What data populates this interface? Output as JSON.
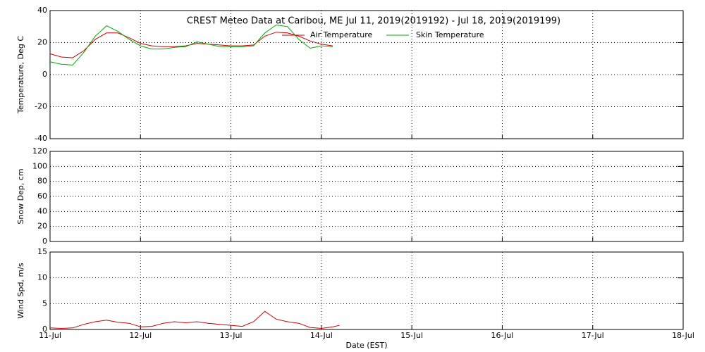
{
  "chart_data": [
    {
      "type": "line",
      "title": "CREST Meteo Data at Caribou, ME   Jul 11, 2019(2019192) - Jul 18, 2019(2019199)",
      "y_label": "Temperature, Deg C",
      "x": [
        0,
        0.125,
        0.25,
        0.375,
        0.5,
        0.625,
        0.75,
        0.875,
        1,
        1.125,
        1.25,
        1.375,
        1.5,
        1.625,
        1.75,
        1.875,
        2,
        2.125,
        2.25,
        2.375,
        2.5,
        2.625,
        2.75,
        2.875,
        3,
        3.125
      ],
      "series": [
        {
          "name": "Air Temperature",
          "color": "#cc0000",
          "values": [
            13,
            11,
            10.5,
            15,
            22,
            26,
            26,
            23,
            19.5,
            18,
            17.5,
            17.5,
            18,
            19.5,
            19,
            18.5,
            18,
            18,
            18.5,
            24,
            26.5,
            26,
            24,
            21,
            19,
            18
          ]
        },
        {
          "name": "Skin Temperature",
          "color": "#00aa00",
          "values": [
            8,
            6.5,
            6,
            14,
            24,
            30.5,
            27,
            22,
            18,
            16,
            16,
            17,
            17.5,
            20.5,
            19,
            17.5,
            17.5,
            17.5,
            18,
            26,
            31,
            30,
            22,
            16.5,
            18,
            17.5
          ]
        }
      ],
      "xlim": [
        0,
        7
      ],
      "xticks": [
        0,
        1,
        2,
        3,
        4,
        5,
        6,
        7
      ],
      "ylim": [
        -40,
        40
      ],
      "yticks": [
        -40,
        -20,
        0,
        20,
        40
      ],
      "grid": true
    },
    {
      "type": "line",
      "y_label": "Snow Dep, cm",
      "x": [],
      "series": [],
      "xlim": [
        0,
        7
      ],
      "xticks": [
        0,
        1,
        2,
        3,
        4,
        5,
        6,
        7
      ],
      "ylim": [
        0,
        120
      ],
      "yticks": [
        0,
        20,
        40,
        60,
        80,
        100,
        120
      ],
      "grid": true
    },
    {
      "type": "line",
      "y_label": "Wind Spd, m/s",
      "x_label": "Date (EST)",
      "x": [
        0,
        0.125,
        0.25,
        0.375,
        0.5,
        0.625,
        0.75,
        0.875,
        1,
        1.125,
        1.25,
        1.375,
        1.5,
        1.625,
        1.75,
        1.875,
        2,
        2.125,
        2.25,
        2.375,
        2.5,
        2.625,
        2.75,
        2.875,
        3,
        3.125,
        3.2
      ],
      "series": [
        {
          "name": "Wind Speed",
          "color": "#cc0000",
          "values": [
            0.3,
            0.2,
            0.3,
            1,
            1.5,
            1.8,
            1.4,
            1.2,
            0.5,
            0.6,
            1.2,
            1.5,
            1.3,
            1.5,
            1.2,
            1,
            0.8,
            0.6,
            1.5,
            3.5,
            2,
            1.5,
            1.2,
            0.4,
            0.2,
            0.5,
            0.8
          ]
        }
      ],
      "xlim": [
        0,
        7
      ],
      "xticks": [
        {
          "value": 0,
          "label": "11-Jul"
        },
        {
          "value": 1,
          "label": "12-Jul"
        },
        {
          "value": 2,
          "label": "13-Jul"
        },
        {
          "value": 3,
          "label": "14-Jul"
        },
        {
          "value": 4,
          "label": "15-Jul"
        },
        {
          "value": 5,
          "label": "16-Jul"
        },
        {
          "value": 6,
          "label": "17-Jul"
        },
        {
          "value": 7,
          "label": "18-Jul"
        }
      ],
      "ylim": [
        0,
        15
      ],
      "yticks": [
        0,
        5,
        10,
        15
      ],
      "grid": true
    }
  ]
}
